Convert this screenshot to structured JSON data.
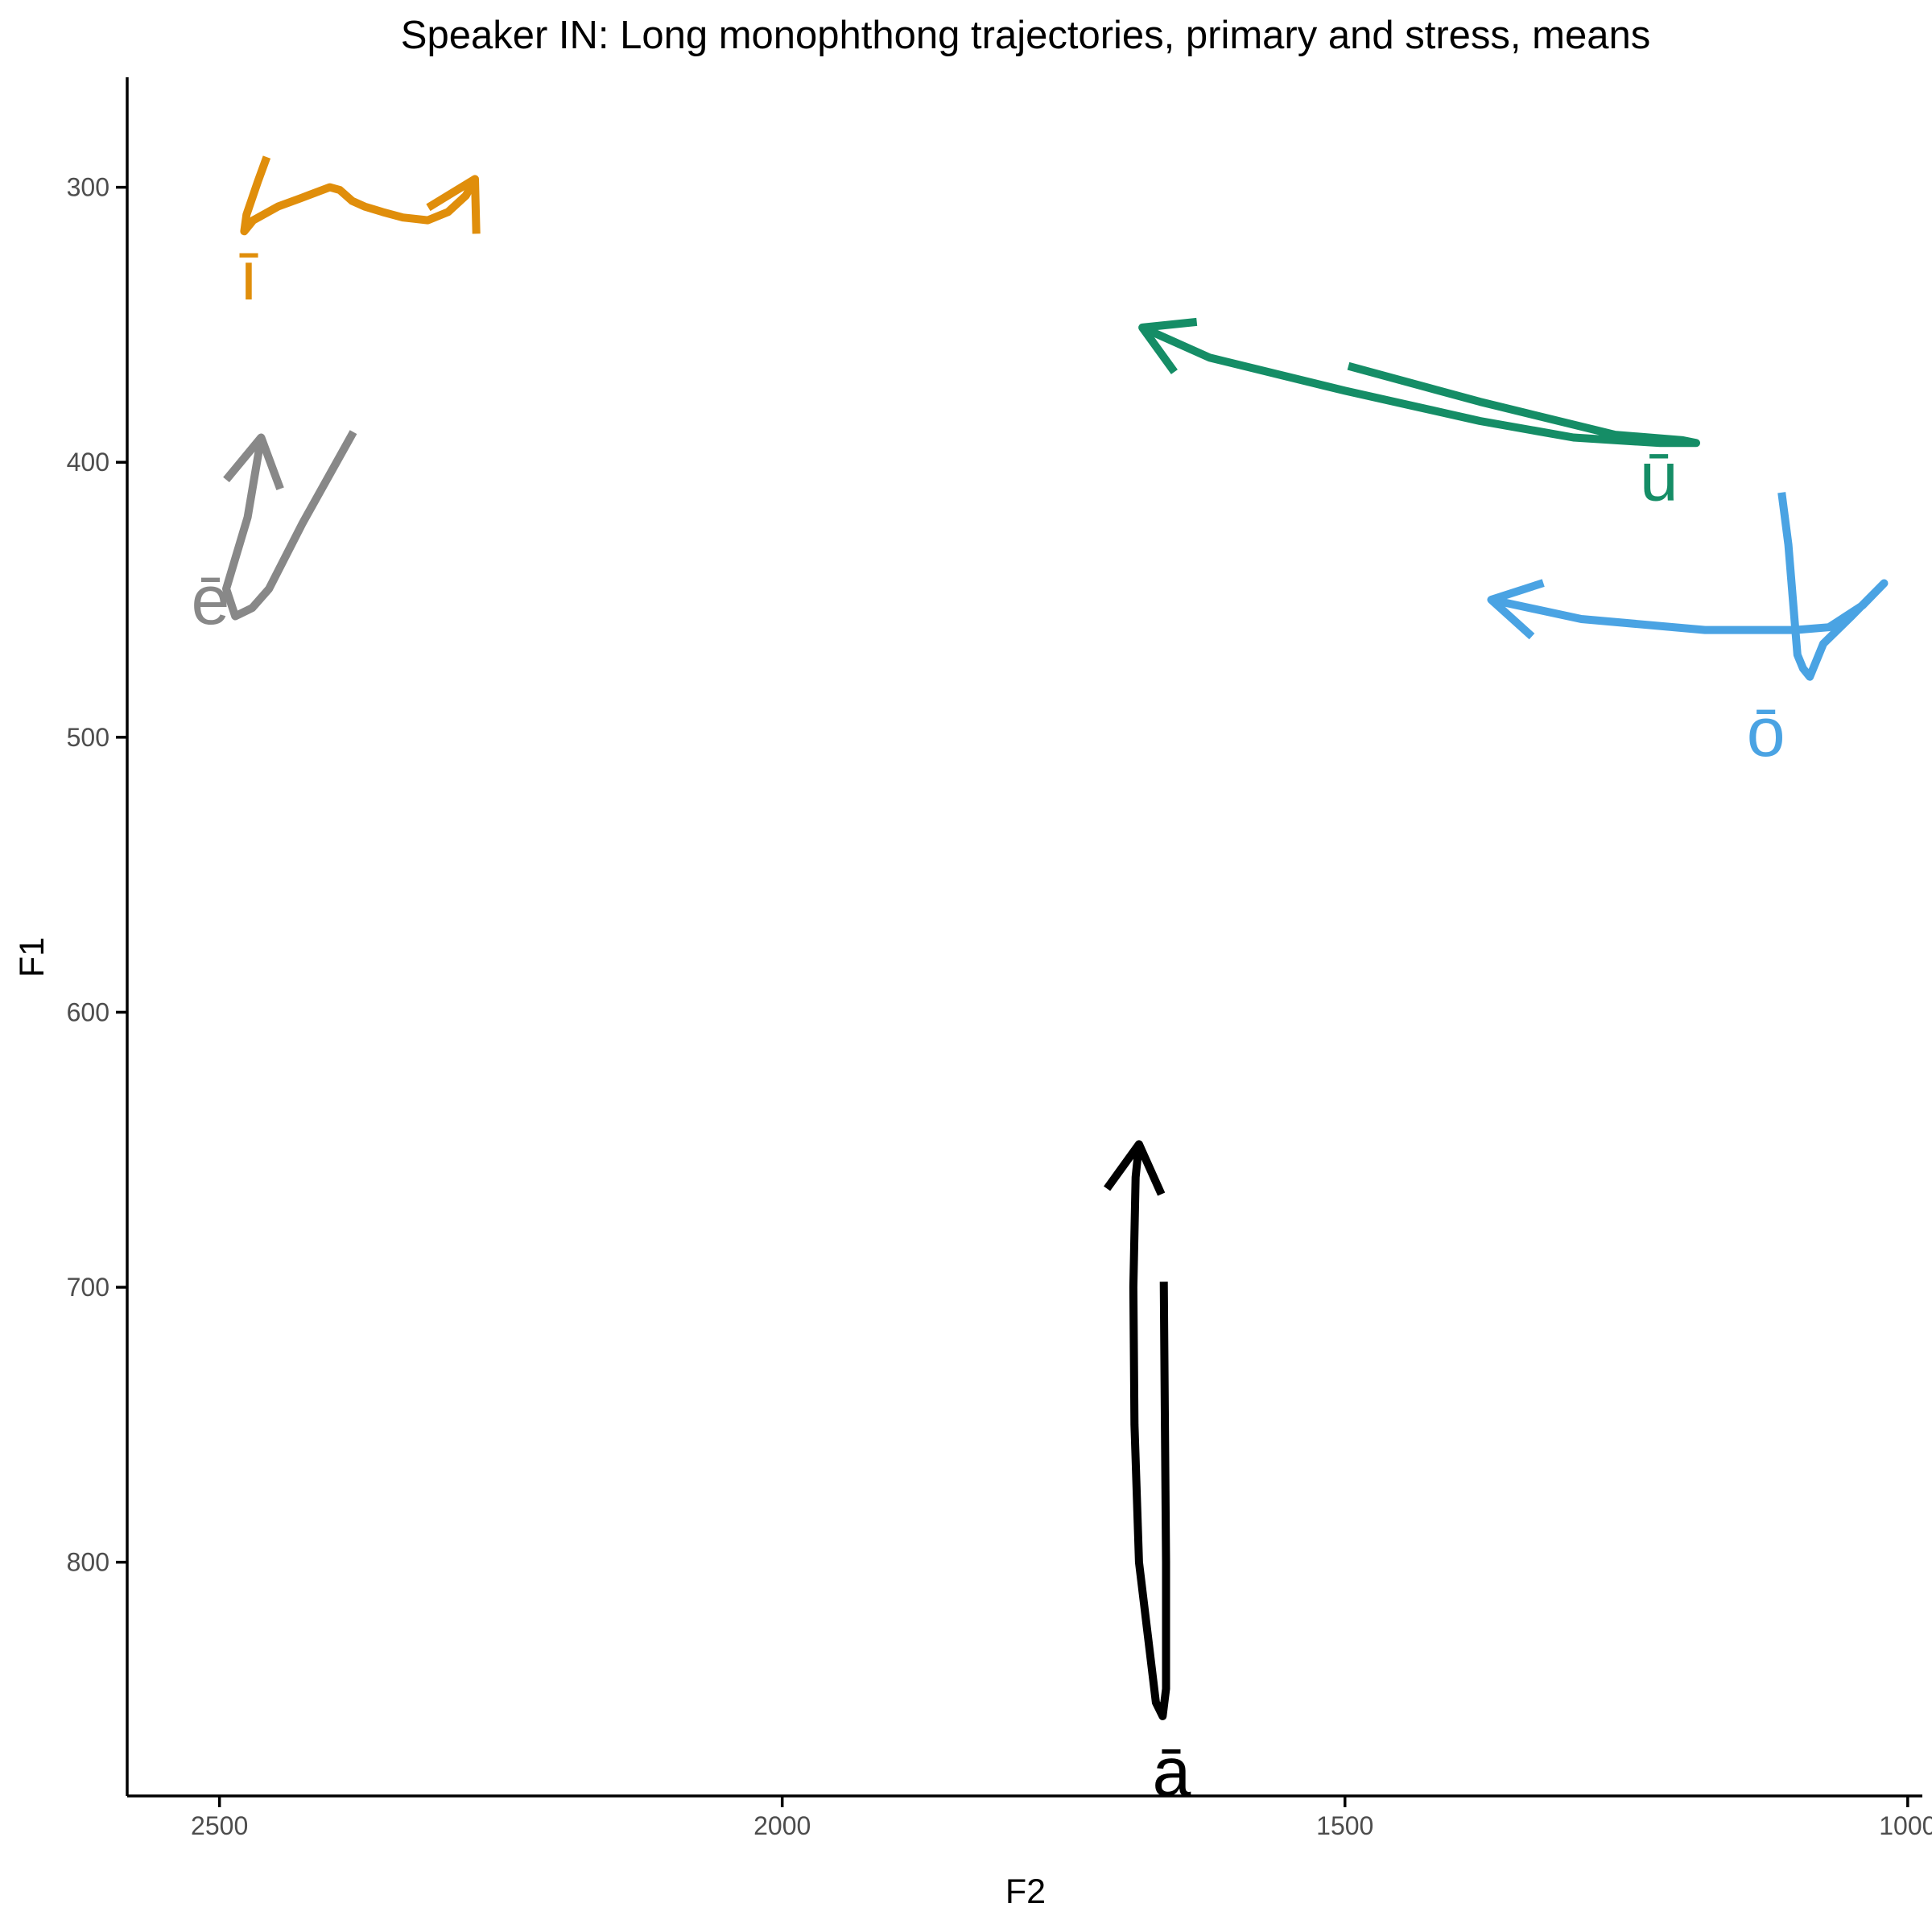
{
  "chart_data": {
    "type": "line",
    "title": "Speaker IN: Long monophthong trajectories, primary and stress, means",
    "xlabel": "F2",
    "ylabel": "F1",
    "xlim": [
      2582,
      987
    ],
    "ylim": [
      260,
      885
    ],
    "x_reversed": true,
    "y_reversed": true,
    "x_ticks": [
      2500,
      2000,
      1500,
      1000
    ],
    "y_ticks": [
      300,
      400,
      500,
      600,
      700,
      800
    ],
    "grid": false,
    "legend": "none",
    "series": [
      {
        "name": "ī",
        "color": "#E08E0B",
        "f2": [
          2458,
          2466,
          2476,
          2478,
          2470,
          2448,
          2428,
          2402,
          2393,
          2382,
          2371,
          2355,
          2337,
          2315,
          2297,
          2281,
          2273
        ],
        "f1": [
          289,
          298,
          310,
          316,
          312,
          307,
          304,
          300,
          301,
          305,
          307,
          309,
          311,
          312,
          309,
          303,
          297
        ],
        "label_pos": [
          2474,
          332
        ]
      },
      {
        "name": "ē",
        "color": "#888888",
        "f2": [
          2381,
          2426,
          2456,
          2471,
          2486,
          2494,
          2475,
          2463
        ],
        "f1": [
          389,
          422,
          446,
          453,
          456,
          446,
          420,
          391
        ],
        "label_pos": [
          2508,
          450
        ]
      },
      {
        "name": "ā",
        "color": "#000000",
        "f2": [
          1661,
          1660,
          1659,
          1659,
          1662,
          1668,
          1683,
          1687,
          1688,
          1686,
          1683
        ],
        "f1": [
          698,
          750,
          800,
          846,
          856,
          851,
          800,
          750,
          700,
          660,
          648
        ],
        "label_pos": [
          1654,
          876
        ]
      },
      {
        "name": "ū",
        "color": "#158D66",
        "f2": [
          1497,
          1380,
          1260,
          1200,
          1188,
          1220,
          1297,
          1380,
          1500,
          1620,
          1680
        ],
        "f1": [
          365,
          378,
          390,
          392,
          393,
          393,
          391,
          385,
          374,
          362,
          351
        ],
        "label_pos": [
          1221,
          405
        ]
      },
      {
        "name": "ō",
        "color": "#4AA3E3",
        "f2": [
          1112,
          1106,
          1102,
          1098,
          1093,
          1087,
          1075,
          1050,
          1021,
          1040,
          1070,
          1100,
          1180,
          1290,
          1370
        ],
        "f1": [
          411,
          430,
          450,
          470,
          475,
          478,
          466,
          456,
          444,
          452,
          460,
          461,
          461,
          457,
          450
        ],
        "label_pos": [
          1126,
          498
        ]
      }
    ]
  }
}
